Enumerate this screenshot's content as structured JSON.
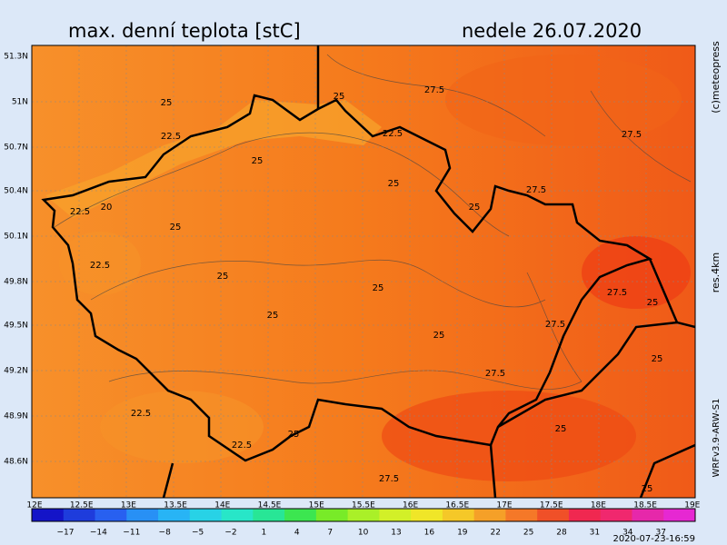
{
  "header": {
    "title": "max. denní teplota [stC]",
    "date": "nedele 26.07.2020"
  },
  "lat_labels": [
    "51.3N",
    "51N",
    "50.7N",
    "50.4N",
    "50.1N",
    "49.8N",
    "49.5N",
    "49.2N",
    "48.9N",
    "48.6N"
  ],
  "lon_labels": [
    "12E",
    "12.5E",
    "13E",
    "13.5E",
    "14E",
    "14.5E",
    "15E",
    "15.5E",
    "16E",
    "16.5E",
    "17E",
    "17.5E",
    "18E",
    "18.5E",
    "19E"
  ],
  "colorbar": {
    "labels": [
      "−17",
      "−14",
      "−11",
      "−8",
      "−5",
      "−2",
      "1",
      "4",
      "7",
      "10",
      "13",
      "16",
      "19",
      "22",
      "25",
      "28",
      "31",
      "34",
      "37"
    ],
    "colors": [
      "#1414c8",
      "#1e3cdc",
      "#2860f0",
      "#2890f5",
      "#28b4f5",
      "#28d2e6",
      "#28e6c8",
      "#28e696",
      "#3ce650",
      "#78eb28",
      "#aaf028",
      "#d2f028",
      "#f0e628",
      "#f5c828",
      "#f5a028",
      "#f57828",
      "#f05028",
      "#f02850",
      "#f0286e",
      "#e628aa",
      "#e628d2"
    ]
  },
  "contour_labels": [
    "25",
    "25",
    "27.5",
    "22.5",
    "22.5",
    "25",
    "25",
    "27.5",
    "27.5",
    "22.5",
    "20",
    "25",
    "25",
    "22.5",
    "25",
    "25",
    "27.5",
    "25",
    "25",
    "27.5",
    "25",
    "27.5",
    "25",
    "22.5",
    "25",
    "22.5",
    "25",
    "27.5",
    "25"
  ],
  "side": {
    "copyright": "(c)meteopress",
    "resolution": "res.4km",
    "model": "WRFv3.9-ARW-S1",
    "timestamp": "2020-07-23-16:59"
  }
}
